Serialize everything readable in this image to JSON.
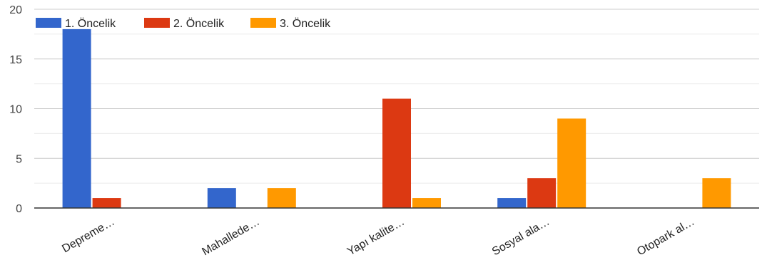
{
  "chart_data": {
    "type": "bar",
    "categories": [
      "Depreme…",
      "Mahallede…",
      "Yapı kalite…",
      "Sosyal ala…",
      "Otopark al…"
    ],
    "series": [
      {
        "name": "1. Öncelik",
        "color": "#3366cc",
        "values": [
          18,
          2,
          0,
          1,
          0
        ]
      },
      {
        "name": "2. Öncelik",
        "color": "#dc3912",
        "values": [
          1,
          0,
          11,
          3,
          0
        ]
      },
      {
        "name": "3. Öncelik",
        "color": "#ff9900",
        "values": [
          0,
          2,
          1,
          9,
          3
        ]
      }
    ],
    "yticks": [
      0,
      5,
      10,
      15,
      20
    ],
    "ylim": [
      0,
      20
    ],
    "grid": true,
    "legend_position": "top-left"
  }
}
